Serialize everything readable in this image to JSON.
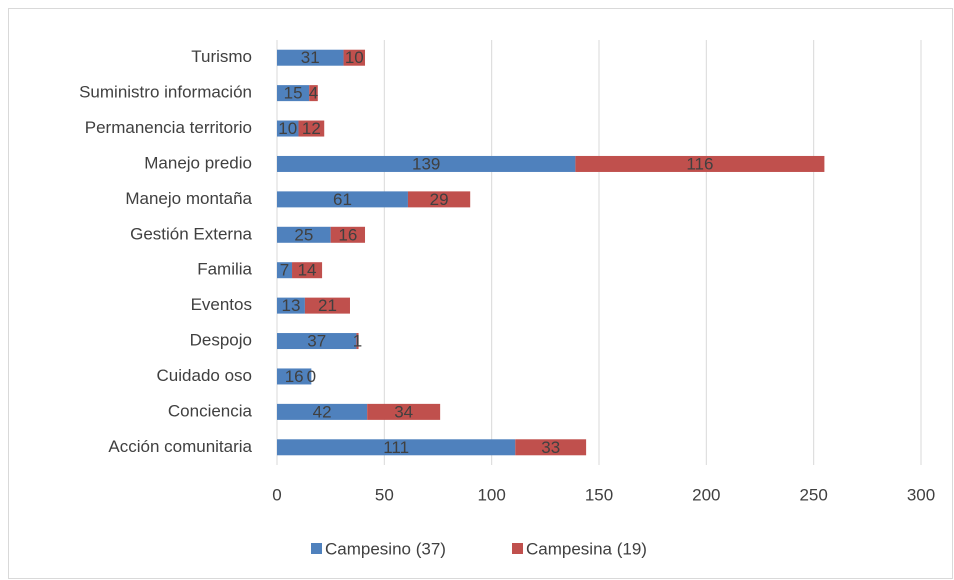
{
  "chart_data": {
    "type": "stacked_barh",
    "categories": [
      "Turismo",
      "Suministro información",
      "Permanencia territorio",
      "Manejo predio",
      "Manejo montaña",
      "Gestión Externa",
      "Familia",
      "Eventos",
      "Despojo",
      "Cuidado oso",
      "Conciencia",
      "Acción comunitaria"
    ],
    "series": [
      {
        "name": "Campesino (37)",
        "color": "#4f81bd",
        "values": [
          31,
          15,
          10,
          139,
          61,
          25,
          7,
          13,
          37,
          16,
          42,
          111
        ]
      },
      {
        "name": "Campesina (19)",
        "color": "#c0504d",
        "values": [
          10,
          4,
          12,
          116,
          29,
          16,
          14,
          21,
          1,
          0,
          34,
          33
        ]
      }
    ],
    "xlim": [
      0,
      300
    ],
    "xticks": [
      0,
      50,
      100,
      150,
      200,
      250,
      300
    ],
    "grid": true,
    "legend": "bottom"
  }
}
